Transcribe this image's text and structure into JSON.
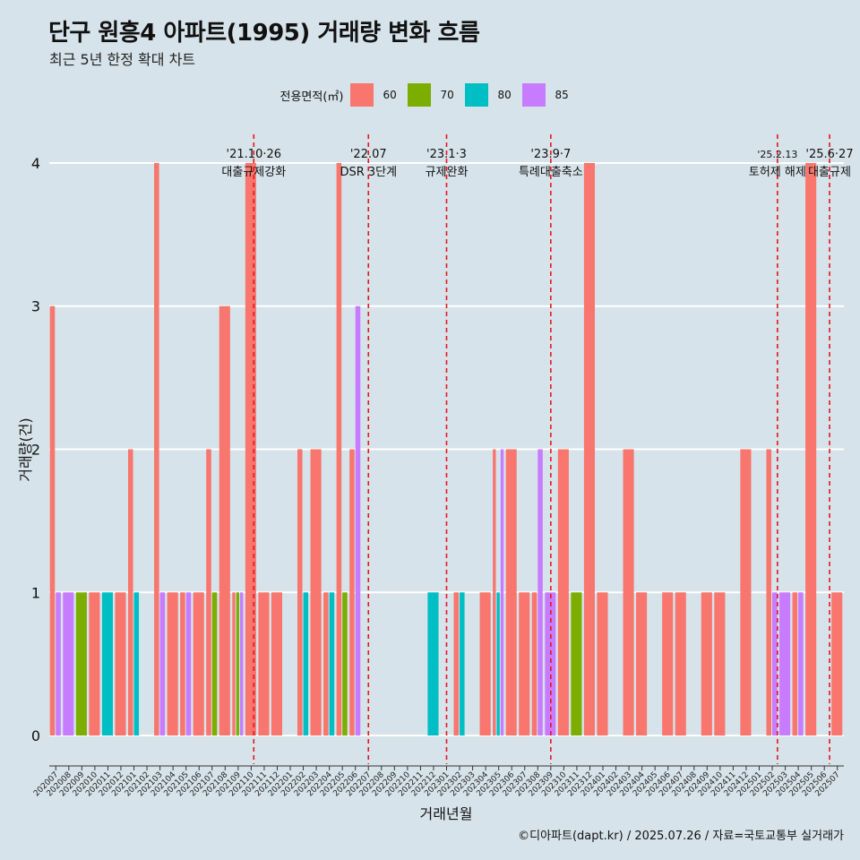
{
  "chart_data": {
    "type": "bar",
    "title": "단구 원흥4 아파트(1995) 거래량 변화 흐름",
    "subtitle": "최근 5년 한정 확대 차트",
    "xlabel": "거래년월",
    "ylabel": "거래량(건)",
    "ylim": [
      -0.2,
      4.2
    ],
    "yticks": [
      0,
      1,
      2,
      3,
      4
    ],
    "legend_title": "전용면적(㎡)",
    "categories": [
      "202007",
      "202008",
      "202009",
      "202010",
      "202011",
      "202012",
      "202101",
      "202102",
      "202103",
      "202104",
      "202105",
      "202106",
      "202107",
      "202108",
      "202109",
      "202110",
      "202111",
      "202112",
      "202201",
      "202202",
      "202203",
      "202204",
      "202205",
      "202206",
      "202207",
      "202208",
      "202209",
      "202210",
      "202211",
      "202212",
      "202301",
      "202302",
      "202303",
      "202304",
      "202305",
      "202306",
      "202307",
      "202308",
      "202309",
      "202310",
      "202311",
      "202312",
      "202401",
      "202402",
      "202403",
      "202404",
      "202405",
      "202406",
      "202407",
      "202408",
      "202409",
      "202410",
      "202411",
      "202412",
      "202501",
      "202502",
      "202503",
      "202504",
      "202505",
      "202506",
      "202507"
    ],
    "series": [
      {
        "name": "60",
        "color": "#f8766d",
        "values": [
          3,
          0,
          0,
          1,
          0,
          1,
          2,
          0,
          4,
          1,
          1,
          1,
          2,
          3,
          1,
          4,
          1,
          1,
          0,
          2,
          2,
          1,
          4,
          2,
          0,
          0,
          0,
          0,
          0,
          0,
          0,
          1,
          0,
          1,
          2,
          2,
          1,
          1,
          0,
          2,
          0,
          4,
          1,
          0,
          2,
          1,
          0,
          1,
          1,
          0,
          1,
          1,
          0,
          2,
          0,
          2,
          0,
          1,
          4,
          0,
          1
        ]
      },
      {
        "name": "70",
        "color": "#7cae00",
        "values": [
          0,
          0,
          1,
          0,
          0,
          0,
          0,
          0,
          0,
          0,
          0,
          0,
          1,
          0,
          1,
          0,
          0,
          0,
          0,
          0,
          0,
          0,
          1,
          0,
          0,
          0,
          0,
          0,
          0,
          0,
          0,
          0,
          0,
          0,
          0,
          0,
          0,
          0,
          0,
          0,
          1,
          0,
          0,
          0,
          0,
          0,
          0,
          0,
          0,
          0,
          0,
          0,
          0,
          0,
          0,
          0,
          0,
          0,
          0,
          0,
          0
        ]
      },
      {
        "name": "80",
        "color": "#00bfc4",
        "values": [
          0,
          0,
          0,
          0,
          1,
          0,
          1,
          0,
          0,
          0,
          0,
          0,
          0,
          0,
          0,
          0,
          0,
          0,
          0,
          1,
          0,
          1,
          0,
          0,
          0,
          0,
          0,
          0,
          0,
          1,
          0,
          1,
          0,
          0,
          1,
          0,
          0,
          0,
          0,
          0,
          0,
          0,
          0,
          0,
          0,
          0,
          0,
          0,
          0,
          0,
          0,
          0,
          0,
          0,
          0,
          0,
          0,
          0,
          0,
          0,
          0
        ]
      },
      {
        "name": "85",
        "color": "#c77cff",
        "values": [
          1,
          1,
          0,
          0,
          0,
          0,
          0,
          0,
          1,
          0,
          1,
          0,
          0,
          0,
          1,
          0,
          0,
          0,
          0,
          0,
          0,
          0,
          0,
          3,
          0,
          0,
          0,
          0,
          0,
          0,
          0,
          0,
          0,
          0,
          2,
          0,
          0,
          2,
          1,
          0,
          0,
          0,
          0,
          0,
          0,
          0,
          0,
          0,
          0,
          0,
          0,
          0,
          0,
          0,
          0,
          1,
          1,
          1,
          0,
          0,
          0
        ]
      }
    ],
    "annotations": [
      {
        "position": 15.2,
        "line1": "'21.10·26",
        "line2": "대출규제강화"
      },
      {
        "position": 24.0,
        "line1": "'22.07",
        "line2": "DSR 3단계"
      },
      {
        "position": 30.0,
        "line1": "'23.1·3",
        "line2": "규제완화"
      },
      {
        "position": 38.0,
        "line1": "'23.9·7",
        "line2": "특례대출축소"
      },
      {
        "position": 55.4,
        "line1": "'25.2.13",
        "line2": "토허제 해제"
      },
      {
        "position": 59.4,
        "line1": "'25.6·27",
        "line2": "대출규제"
      }
    ]
  },
  "caption": "©디아파트(dapt.kr) / 2025.07.26 / 자료=국토교통부 실거래가"
}
